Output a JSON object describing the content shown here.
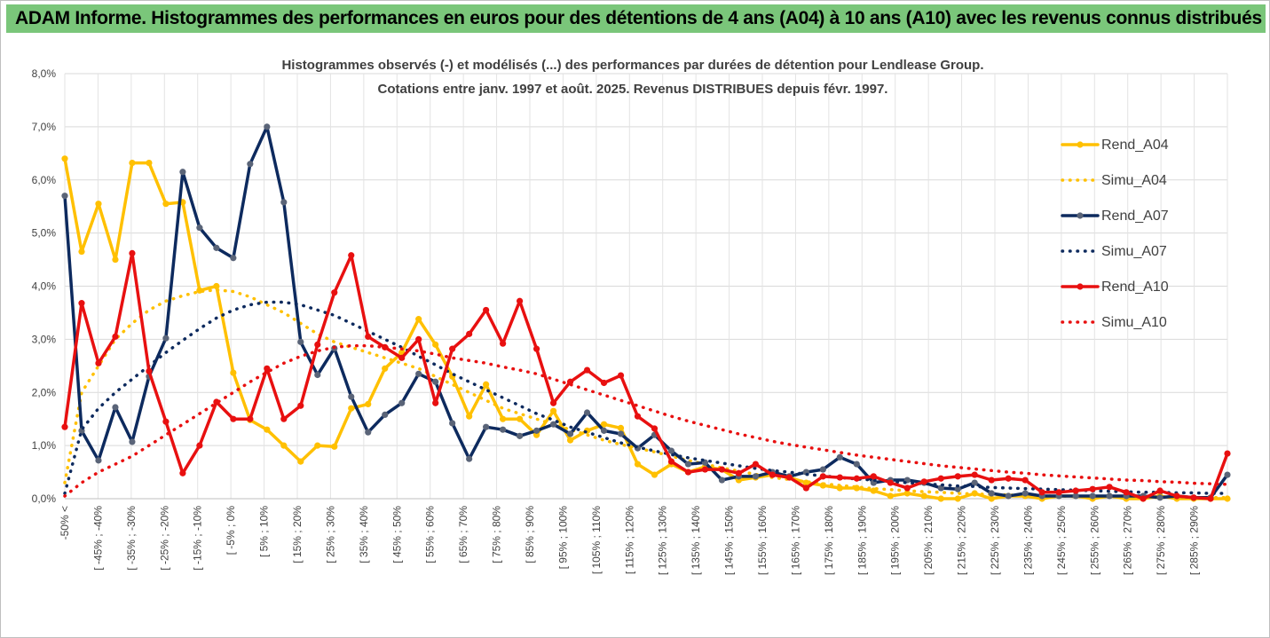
{
  "header": {
    "title": "ADAM Informe. Histogrammes des performances en euros pour des détentions de 4 ans (A04) à 10 ans (A10) avec les revenus connus distribués"
  },
  "chart_data": {
    "type": "line",
    "title": "Histogrammes observés (-) et modélisés (...) des performances par durées de détention pour Lendlease Group.",
    "subtitle": "Cotations entre janv. 1997 et août. 2025. Revenus DISTRIBUES depuis févr. 1997.",
    "xlabel": "",
    "ylabel": "",
    "ylim": [
      0,
      8
    ],
    "yticks": [
      "0,0%",
      "1,0%",
      "2,0%",
      "3,0%",
      "4,0%",
      "5,0%",
      "6,0%",
      "7,0%",
      "8,0%"
    ],
    "grid": true,
    "legend_position": "right",
    "x_tick_labels": [
      "-50% <",
      "[ -45% ; -40%",
      "[ -35% ; -30%",
      "[ -25% ; -20%",
      "[ -15% ; -10%",
      "[ -5% ; 0%",
      "[ 5% ; 10%",
      "[ 15% ; 20%",
      "[ 25% ; 30%",
      "[ 35% ; 40%",
      "[ 45% ; 50%",
      "[ 55% ; 60%",
      "[ 65% ; 70%",
      "[ 75% ; 80%",
      "[ 85% ; 90%",
      "[ 95% ; 100%",
      "[ 105% ; 110%",
      "[ 115% ; 120%",
      "[ 125% ; 130%",
      "[ 135% ; 140%",
      "[ 145% ; 150%",
      "[ 155% ; 160%",
      "[ 165% ; 170%",
      "[ 175% ; 180%",
      "[ 185% ; 190%",
      "[ 195% ; 200%",
      "[ 205% ; 210%",
      "[ 215% ; 220%",
      "[ 225% ; 230%",
      "[ 235% ; 240%",
      "[ 245% ; 250%",
      "[ 255% ; 260%",
      "[ 265% ; 270%",
      "[ 275% ; 280%",
      "[ 285% ; 290%"
    ],
    "series": [
      {
        "name": "Rend_A04",
        "style": "solid",
        "color": "#FFC000",
        "values": [
          6.4,
          4.65,
          5.55,
          4.5,
          6.32,
          6.32,
          5.55,
          5.58,
          3.92,
          4.0,
          2.37,
          1.48,
          1.3,
          1.0,
          0.7,
          1.0,
          0.98,
          1.7,
          1.78,
          2.45,
          2.75,
          3.38,
          2.9,
          2.3,
          1.55,
          2.15,
          1.5,
          1.5,
          1.2,
          1.65,
          1.1,
          1.28,
          1.4,
          1.33,
          0.65,
          0.45,
          0.65,
          0.5,
          0.6,
          0.55,
          0.35,
          0.4,
          0.45,
          0.4,
          0.3,
          0.25,
          0.2,
          0.2,
          0.15,
          0.05,
          0.1,
          0.05,
          0.0,
          0.0,
          0.1,
          0.0,
          0.05,
          0.05,
          0.0,
          0.05,
          0.05,
          0.0,
          0.05,
          0.0,
          0.0,
          0.05,
          0.0,
          0.0,
          0.0,
          0.0
        ]
      },
      {
        "name": "Simu_A04",
        "style": "dotted",
        "color": "#FFC000",
        "values": [
          0.3,
          2.0,
          2.5,
          3.0,
          3.3,
          3.55,
          3.72,
          3.82,
          3.9,
          3.93,
          3.9,
          3.8,
          3.65,
          3.5,
          3.3,
          3.1,
          2.95,
          2.85,
          2.75,
          2.65,
          2.55,
          2.45,
          2.3,
          2.15,
          2.0,
          1.85,
          1.7,
          1.6,
          1.5,
          1.4,
          1.3,
          1.2,
          1.1,
          1.02,
          0.95,
          0.88,
          0.8,
          0.72,
          0.65,
          0.58,
          0.52,
          0.46,
          0.4,
          0.36,
          0.32,
          0.28,
          0.25,
          0.22,
          0.19,
          0.17,
          0.15,
          0.13,
          0.12,
          0.1,
          0.09,
          0.08,
          0.07,
          0.06,
          0.05,
          0.05,
          0.04,
          0.04,
          0.03,
          0.03,
          0.03,
          0.02,
          0.02,
          0.02,
          0.02,
          0.02
        ]
      },
      {
        "name": "Rend_A07",
        "style": "solid",
        "color": "#0D2A5E",
        "values": [
          5.7,
          1.28,
          0.72,
          1.72,
          1.07,
          2.3,
          3.02,
          6.15,
          5.1,
          4.72,
          4.53,
          6.3,
          7.0,
          5.58,
          2.95,
          2.33,
          2.83,
          1.92,
          1.25,
          1.58,
          1.8,
          2.35,
          2.2,
          1.42,
          0.75,
          1.35,
          1.3,
          1.18,
          1.28,
          1.4,
          1.22,
          1.62,
          1.28,
          1.22,
          0.95,
          1.2,
          0.9,
          0.65,
          0.68,
          0.35,
          0.42,
          0.42,
          0.5,
          0.42,
          0.5,
          0.55,
          0.78,
          0.65,
          0.3,
          0.35,
          0.35,
          0.3,
          0.2,
          0.18,
          0.3,
          0.1,
          0.05,
          0.1,
          0.05,
          0.05,
          0.05,
          0.05,
          0.05,
          0.05,
          0.05,
          0.02,
          0.05,
          0.02,
          0.02,
          0.45
        ]
      },
      {
        "name": "Simu_A07",
        "style": "dotted",
        "color": "#0D2A5E",
        "values": [
          0.1,
          1.3,
          1.7,
          2.0,
          2.25,
          2.5,
          2.75,
          2.98,
          3.2,
          3.4,
          3.55,
          3.65,
          3.7,
          3.7,
          3.65,
          3.55,
          3.45,
          3.3,
          3.15,
          3.0,
          2.85,
          2.68,
          2.52,
          2.35,
          2.2,
          2.05,
          1.9,
          1.75,
          1.6,
          1.48,
          1.35,
          1.25,
          1.15,
          1.05,
          0.97,
          0.9,
          0.83,
          0.77,
          0.72,
          0.67,
          0.62,
          0.57,
          0.53,
          0.5,
          0.46,
          0.43,
          0.4,
          0.37,
          0.35,
          0.32,
          0.3,
          0.28,
          0.26,
          0.24,
          0.23,
          0.21,
          0.2,
          0.19,
          0.18,
          0.17,
          0.16,
          0.15,
          0.14,
          0.13,
          0.12,
          0.12,
          0.11,
          0.11,
          0.1,
          0.1
        ]
      },
      {
        "name": "Rend_A10",
        "style": "solid",
        "color": "#E81010",
        "values": [
          1.35,
          3.68,
          2.55,
          3.05,
          4.62,
          2.4,
          1.45,
          0.48,
          1.0,
          1.82,
          1.5,
          1.5,
          2.45,
          1.5,
          1.75,
          2.9,
          3.88,
          4.58,
          3.05,
          2.85,
          2.65,
          3.0,
          1.8,
          2.82,
          3.1,
          3.55,
          2.92,
          3.72,
          2.82,
          1.8,
          2.2,
          2.42,
          2.18,
          2.32,
          1.55,
          1.32,
          0.7,
          0.5,
          0.55,
          0.55,
          0.48,
          0.65,
          0.45,
          0.4,
          0.2,
          0.42,
          0.4,
          0.38,
          0.42,
          0.3,
          0.2,
          0.32,
          0.38,
          0.42,
          0.45,
          0.35,
          0.38,
          0.35,
          0.12,
          0.12,
          0.15,
          0.18,
          0.22,
          0.12,
          0.0,
          0.15,
          0.05,
          0.02,
          0.0,
          0.85
        ]
      },
      {
        "name": "Simu_A10",
        "style": "dotted",
        "color": "#E81010",
        "values": [
          0.05,
          0.3,
          0.5,
          0.65,
          0.8,
          1.0,
          1.2,
          1.4,
          1.6,
          1.8,
          2.0,
          2.2,
          2.38,
          2.55,
          2.68,
          2.78,
          2.85,
          2.88,
          2.88,
          2.85,
          2.82,
          2.78,
          2.72,
          2.65,
          2.6,
          2.55,
          2.48,
          2.42,
          2.35,
          2.25,
          2.15,
          2.05,
          1.95,
          1.85,
          1.75,
          1.65,
          1.55,
          1.46,
          1.38,
          1.3,
          1.22,
          1.15,
          1.08,
          1.02,
          0.97,
          0.92,
          0.87,
          0.82,
          0.78,
          0.74,
          0.7,
          0.66,
          0.62,
          0.59,
          0.56,
          0.53,
          0.5,
          0.48,
          0.45,
          0.43,
          0.41,
          0.39,
          0.37,
          0.35,
          0.34,
          0.32,
          0.31,
          0.29,
          0.28,
          0.27
        ]
      }
    ]
  }
}
